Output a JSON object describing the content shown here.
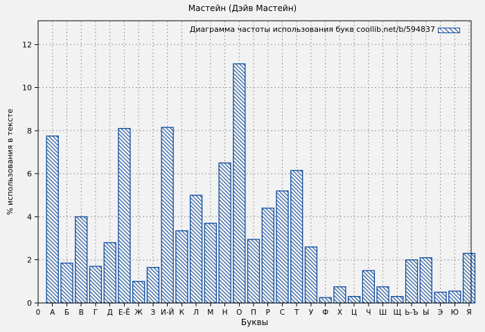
{
  "window": {
    "background_color": "#f2f2f2"
  },
  "colors": {
    "bar_stroke": "#0f4c9e",
    "bar_fill_background": "#f2f2f2",
    "grid": "#999999",
    "axis": "#000000",
    "text": "#000000"
  },
  "chart_data": {
    "type": "bar",
    "title": "Мастейн (Дэйв Мастейн)",
    "legend": "Диаграмма частоты использования букв coollib.net/b/594837",
    "legend_position": "top-right",
    "xlabel": "Буквы",
    "ylabel": "% использования в тексте",
    "x_origin_label": "0",
    "categories": [
      "А",
      "Б",
      "В",
      "Г",
      "Д",
      "Е-Ё",
      "Ж",
      "З",
      "И-Й",
      "К",
      "Л",
      "М",
      "Н",
      "О",
      "П",
      "Р",
      "С",
      "Т",
      "У",
      "Ф",
      "Х",
      "Ц",
      "Ч",
      "Ш",
      "Щ",
      "Ь-Ъ",
      "Ы",
      "Э",
      "Ю",
      "Я"
    ],
    "values": [
      7.75,
      1.85,
      4.0,
      1.7,
      2.8,
      8.1,
      1.0,
      1.65,
      8.15,
      3.35,
      5.0,
      3.7,
      6.5,
      11.1,
      2.95,
      4.4,
      5.2,
      6.15,
      2.6,
      0.25,
      0.75,
      0.3,
      1.5,
      0.75,
      0.3,
      2.0,
      2.1,
      0.5,
      0.55,
      2.3
    ],
    "yticks": [
      0,
      2,
      4,
      6,
      8,
      10,
      12
    ],
    "ylim": [
      0,
      13.1
    ],
    "grid": true,
    "grid_style": "dashed",
    "bar_style": "hatched-diagonal"
  }
}
